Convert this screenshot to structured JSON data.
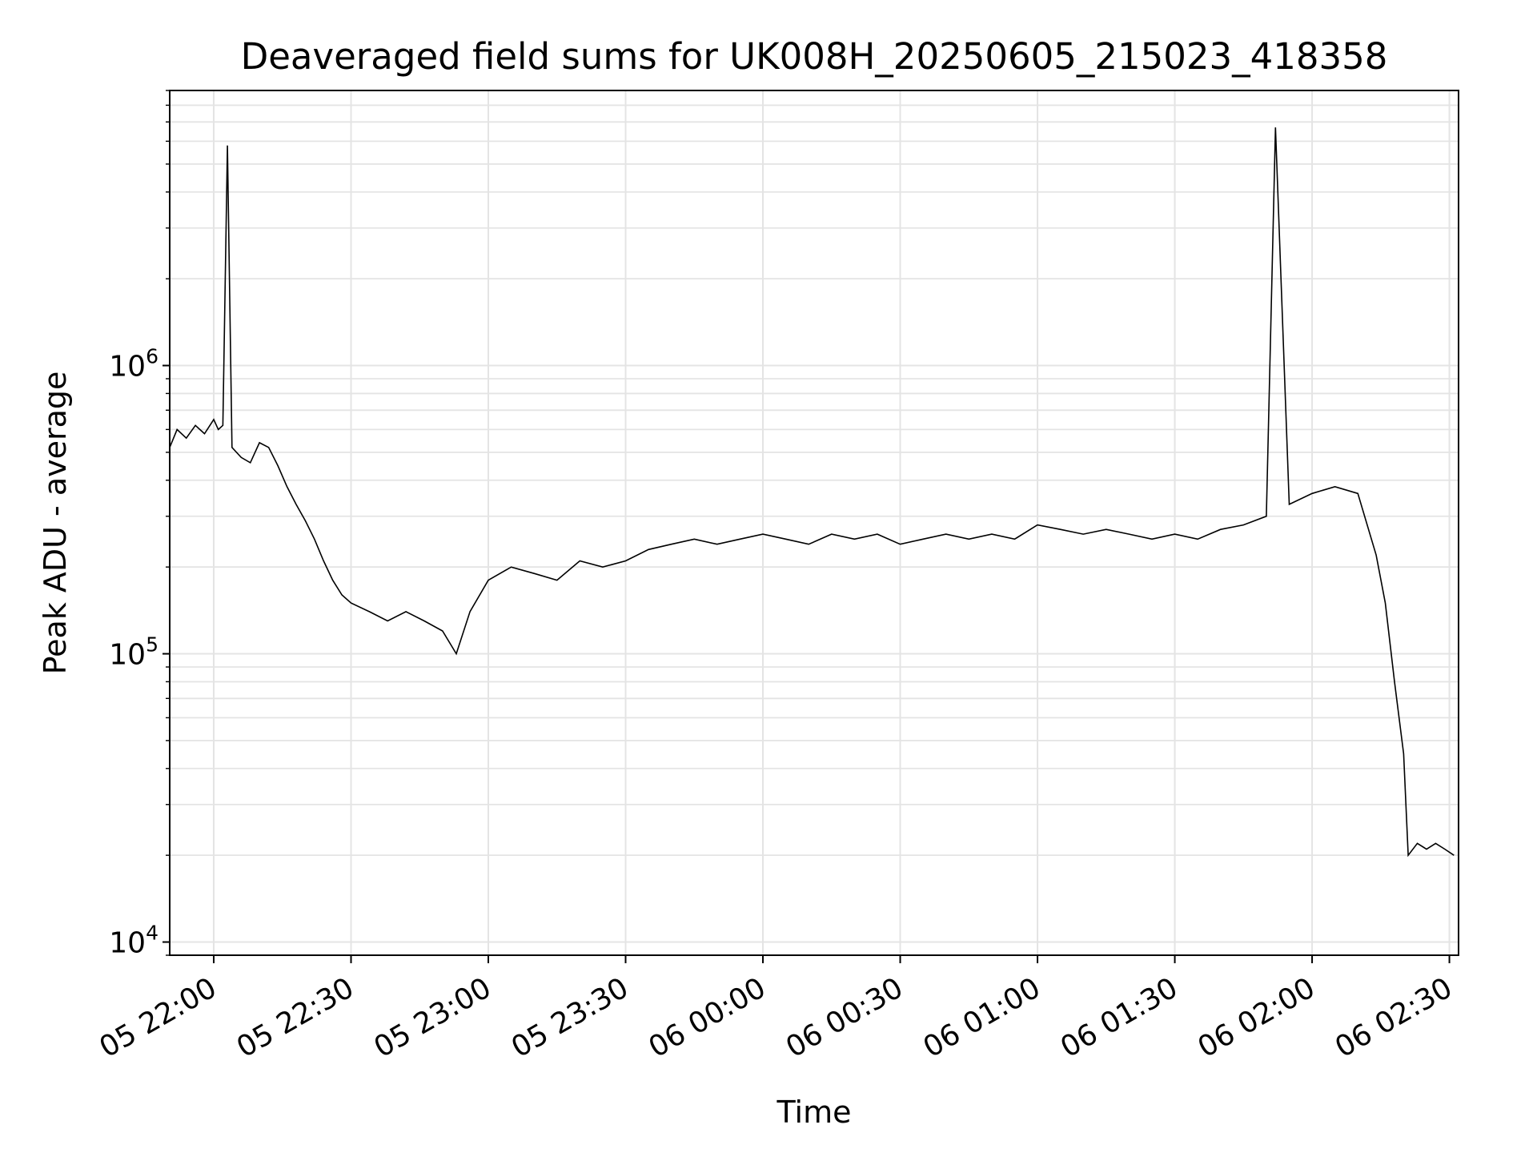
{
  "chart_data": {
    "type": "line",
    "title": "Deaveraged field sums for UK008H_20250605_215023_418358",
    "xlabel": "Time",
    "ylabel": "Peak ADU - average",
    "yscale": "log",
    "ylim": [
      9000,
      9000000
    ],
    "xlim": [
      "2025-06-05 21:50:23",
      "2025-06-06 02:32:00"
    ],
    "grid": true,
    "x_ticks": [
      "2025-06-05 22:00",
      "2025-06-05 22:30",
      "2025-06-05 23:00",
      "2025-06-05 23:30",
      "2025-06-06 00:00",
      "2025-06-06 00:30",
      "2025-06-06 01:00",
      "2025-06-06 01:30",
      "2025-06-06 02:00",
      "2025-06-06 02:30"
    ],
    "x_tick_labels": [
      "05 22:00",
      "05 22:30",
      "05 23:00",
      "05 23:30",
      "06 00:00",
      "06 00:30",
      "06 01:00",
      "06 01:30",
      "06 02:00",
      "06 02:30"
    ],
    "y_tick_labels": [
      {
        "value": 10000,
        "base": "10",
        "exp": "4"
      },
      {
        "value": 100000,
        "base": "10",
        "exp": "5"
      },
      {
        "value": 1000000,
        "base": "10",
        "exp": "6"
      }
    ],
    "line_color": "#000000",
    "series": [
      {
        "points": [
          [
            "2025-06-05 21:50:23",
            520000
          ],
          [
            "2025-06-05 21:52",
            600000
          ],
          [
            "2025-06-05 21:54",
            560000
          ],
          [
            "2025-06-05 21:56",
            620000
          ],
          [
            "2025-06-05 21:58",
            580000
          ],
          [
            "2025-06-05 22:00",
            650000
          ],
          [
            "2025-06-05 22:01",
            600000
          ],
          [
            "2025-06-05 22:02",
            620000
          ],
          [
            "2025-06-05 22:03",
            5800000
          ],
          [
            "2025-06-05 22:04",
            520000
          ],
          [
            "2025-06-05 22:06",
            480000
          ],
          [
            "2025-06-05 22:08",
            460000
          ],
          [
            "2025-06-05 22:10",
            540000
          ],
          [
            "2025-06-05 22:12",
            520000
          ],
          [
            "2025-06-05 22:14",
            450000
          ],
          [
            "2025-06-05 22:16",
            380000
          ],
          [
            "2025-06-05 22:18",
            330000
          ],
          [
            "2025-06-05 22:20",
            290000
          ],
          [
            "2025-06-05 22:22",
            250000
          ],
          [
            "2025-06-05 22:24",
            210000
          ],
          [
            "2025-06-05 22:26",
            180000
          ],
          [
            "2025-06-05 22:28",
            160000
          ],
          [
            "2025-06-05 22:30",
            150000
          ],
          [
            "2025-06-05 22:34",
            140000
          ],
          [
            "2025-06-05 22:38",
            130000
          ],
          [
            "2025-06-05 22:42",
            140000
          ],
          [
            "2025-06-05 22:46",
            130000
          ],
          [
            "2025-06-05 22:50",
            120000
          ],
          [
            "2025-06-05 22:53",
            100000
          ],
          [
            "2025-06-05 22:56",
            140000
          ],
          [
            "2025-06-05 23:00",
            180000
          ],
          [
            "2025-06-05 23:05",
            200000
          ],
          [
            "2025-06-05 23:10",
            190000
          ],
          [
            "2025-06-05 23:15",
            180000
          ],
          [
            "2025-06-05 23:20",
            210000
          ],
          [
            "2025-06-05 23:25",
            200000
          ],
          [
            "2025-06-05 23:30",
            210000
          ],
          [
            "2025-06-05 23:35",
            230000
          ],
          [
            "2025-06-05 23:40",
            240000
          ],
          [
            "2025-06-05 23:45",
            250000
          ],
          [
            "2025-06-05 23:50",
            240000
          ],
          [
            "2025-06-05 23:55",
            250000
          ],
          [
            "2025-06-06 00:00",
            260000
          ],
          [
            "2025-06-06 00:05",
            250000
          ],
          [
            "2025-06-06 00:10",
            240000
          ],
          [
            "2025-06-06 00:15",
            260000
          ],
          [
            "2025-06-06 00:20",
            250000
          ],
          [
            "2025-06-06 00:25",
            260000
          ],
          [
            "2025-06-06 00:30",
            240000
          ],
          [
            "2025-06-06 00:35",
            250000
          ],
          [
            "2025-06-06 00:40",
            260000
          ],
          [
            "2025-06-06 00:45",
            250000
          ],
          [
            "2025-06-06 00:50",
            260000
          ],
          [
            "2025-06-06 00:55",
            250000
          ],
          [
            "2025-06-06 01:00",
            280000
          ],
          [
            "2025-06-06 01:05",
            270000
          ],
          [
            "2025-06-06 01:10",
            260000
          ],
          [
            "2025-06-06 01:15",
            270000
          ],
          [
            "2025-06-06 01:20",
            260000
          ],
          [
            "2025-06-06 01:25",
            250000
          ],
          [
            "2025-06-06 01:30",
            260000
          ],
          [
            "2025-06-06 01:35",
            250000
          ],
          [
            "2025-06-06 01:40",
            270000
          ],
          [
            "2025-06-06 01:45",
            280000
          ],
          [
            "2025-06-06 01:50",
            300000
          ],
          [
            "2025-06-06 01:52",
            6700000
          ],
          [
            "2025-06-06 01:55",
            330000
          ],
          [
            "2025-06-06 02:00",
            360000
          ],
          [
            "2025-06-06 02:05",
            380000
          ],
          [
            "2025-06-06 02:10",
            360000
          ],
          [
            "2025-06-06 02:14",
            220000
          ],
          [
            "2025-06-06 02:16",
            150000
          ],
          [
            "2025-06-06 02:18",
            80000
          ],
          [
            "2025-06-06 02:20",
            45000
          ],
          [
            "2025-06-06 02:21",
            20000
          ],
          [
            "2025-06-06 02:23",
            22000
          ],
          [
            "2025-06-06 02:25",
            21000
          ],
          [
            "2025-06-06 02:27",
            22000
          ],
          [
            "2025-06-06 02:29",
            21000
          ],
          [
            "2025-06-06 02:31",
            20000
          ]
        ]
      }
    ]
  }
}
